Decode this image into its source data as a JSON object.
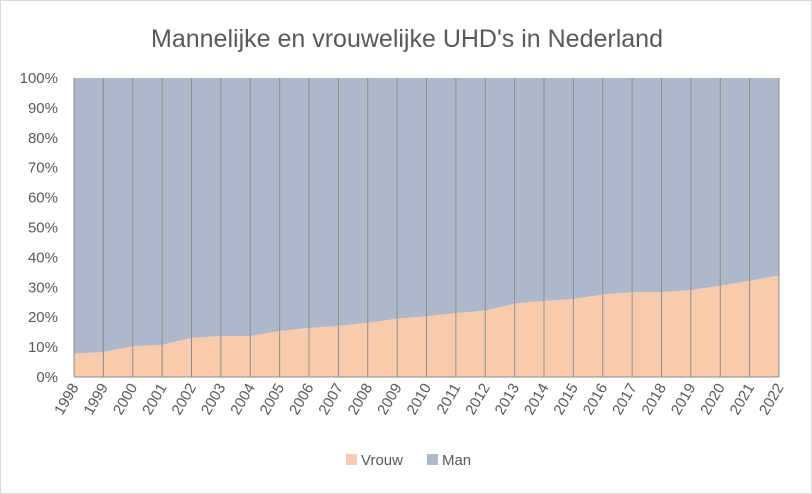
{
  "chart_data": {
    "type": "area",
    "stacked": "percent",
    "title": "Mannelijke en vrouwelijke UHD's in Nederland",
    "xlabel": "",
    "ylabel": "",
    "ylim": [
      0,
      100
    ],
    "yticks": [
      "0%",
      "10%",
      "20%",
      "30%",
      "40%",
      "50%",
      "60%",
      "70%",
      "80%",
      "90%",
      "100%"
    ],
    "x": [
      "1998",
      "1999",
      "2000",
      "2001",
      "2002",
      "2003",
      "2004",
      "2005",
      "2006",
      "2007",
      "2008",
      "2009",
      "2010",
      "2011",
      "2012",
      "2013",
      "2014",
      "2015",
      "2016",
      "2017",
      "2018",
      "2019",
      "2020",
      "2021",
      "2022"
    ],
    "series": [
      {
        "name": "Vrouw",
        "color": "#f8cbad",
        "values": [
          7.8,
          8.3,
          10.3,
          10.8,
          13.1,
          13.7,
          13.7,
          15.4,
          16.4,
          17.1,
          18.2,
          19.5,
          20.3,
          21.4,
          22.2,
          24.6,
          25.4,
          26.1,
          27.6,
          28.4,
          28.4,
          29.1,
          30.5,
          32.2,
          34.0
        ]
      },
      {
        "name": "Man",
        "color": "#adb9ca",
        "values": [
          92.2,
          91.7,
          89.7,
          89.2,
          86.9,
          86.3,
          86.3,
          84.6,
          83.6,
          82.9,
          81.8,
          80.5,
          79.7,
          78.6,
          77.8,
          75.4,
          74.6,
          73.9,
          72.4,
          71.6,
          71.6,
          70.9,
          69.5,
          67.8,
          66.0
        ]
      }
    ],
    "gridlines": "vertical-per-category",
    "legend_position": "bottom"
  }
}
